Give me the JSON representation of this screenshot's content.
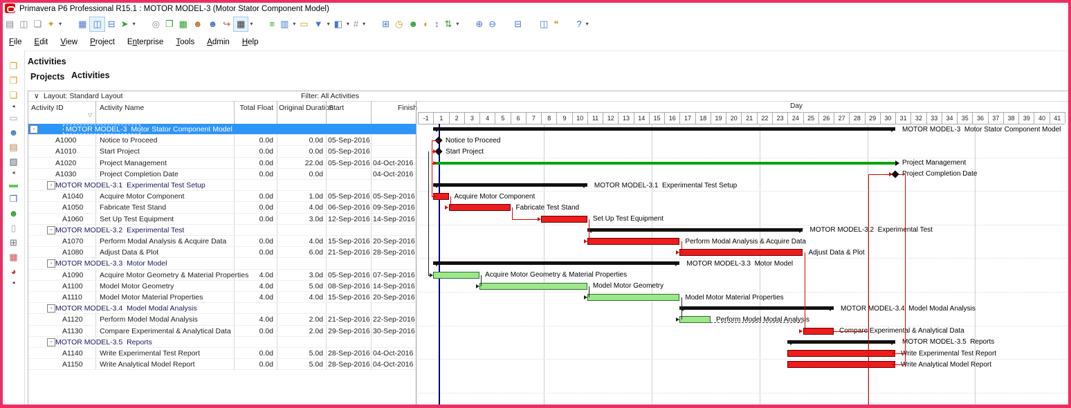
{
  "window": {
    "title": "Primavera P6 Professional R15.1 : MOTOR MODEL-3 (Motor Stator Component Model)"
  },
  "menu": {
    "items": [
      {
        "label": "File",
        "u": 0
      },
      {
        "label": "Edit",
        "u": 0
      },
      {
        "label": "View",
        "u": 0
      },
      {
        "label": "Project",
        "u": 0
      },
      {
        "label": "Enterprise",
        "u": 1
      },
      {
        "label": "Tools",
        "u": 0
      },
      {
        "label": "Admin",
        "u": 0
      },
      {
        "label": "Help",
        "u": 0
      }
    ]
  },
  "toolbar": {
    "icons": [
      {
        "name": "print-icon",
        "g": "▤",
        "c": "#8a8a8a"
      },
      {
        "name": "print-preview-icon",
        "g": "◫",
        "c": "#8a8a8a"
      },
      {
        "name": "page-setup-icon",
        "g": "❏",
        "c": "#8a8a8a"
      },
      {
        "name": "publish-icon",
        "g": "✦",
        "c": "#c9a227"
      },
      {
        "name": "caret",
        "g": "▾",
        "c": "#444",
        "caret": true
      },
      {
        "name": "gap",
        "gap": true
      },
      {
        "name": "table-view-icon",
        "g": "▦",
        "c": "#4a78c9"
      },
      {
        "name": "gantt-view-icon",
        "g": "◫",
        "c": "#4a78c9",
        "hl": true
      },
      {
        "name": "trace-logic-icon",
        "g": "⊟",
        "c": "#4a78c9"
      },
      {
        "name": "pointer-icon",
        "g": "➤",
        "c": "#2f9e2f"
      },
      {
        "name": "caret",
        "g": "▾",
        "c": "#444",
        "caret": true
      },
      {
        "name": "gap",
        "gap": true
      },
      {
        "name": "search-icon",
        "g": "◎",
        "c": "#8a8a8a"
      },
      {
        "name": "add-project-icon",
        "g": "❒",
        "c": "#2f9e2f"
      },
      {
        "name": "add-wbs-icon",
        "g": "▦",
        "c": "#2f9e2f"
      },
      {
        "name": "resource-blue-icon",
        "g": "☻",
        "c": "#b8793a"
      },
      {
        "name": "resource-role-icon",
        "g": "☻",
        "c": "#4a78c9"
      },
      {
        "name": "relationship-icon",
        "g": "↪",
        "c": "#c94a4a"
      },
      {
        "name": "schedule-icon",
        "g": "▦",
        "c": "#333",
        "hl": true
      },
      {
        "name": "caret",
        "g": "▾",
        "c": "#444",
        "caret": true
      },
      {
        "name": "gap",
        "gap": true
      },
      {
        "name": "bars-icon",
        "g": "≡",
        "c": "#2f9e2f"
      },
      {
        "name": "columns-icon",
        "g": "▥",
        "c": "#4a78c9"
      },
      {
        "name": "caret",
        "g": "▾",
        "c": "#444",
        "caret": true
      },
      {
        "name": "bottom-layout-icon",
        "g": "▭",
        "c": "#c9a227"
      },
      {
        "name": "filter-icon",
        "g": "▼",
        "c": "#4a78c9"
      },
      {
        "name": "caret",
        "g": "▾",
        "c": "#444",
        "caret": true
      },
      {
        "name": "group-sort-icon",
        "g": "◧",
        "c": "#4a78c9"
      },
      {
        "name": "caret",
        "g": "▾",
        "c": "#444",
        "caret": true
      },
      {
        "name": "font-icon",
        "g": "#",
        "c": "#999"
      },
      {
        "name": "caret",
        "g": "▾",
        "c": "#444",
        "caret": true
      },
      {
        "name": "gap",
        "gap": true
      },
      {
        "name": "grid-icon",
        "g": "⊞",
        "c": "#4a78c9"
      },
      {
        "name": "clock-icon",
        "g": "◷",
        "c": "#c9a227"
      },
      {
        "name": "assign-resource-icon",
        "g": "☻",
        "c": "#2f9e2f"
      },
      {
        "name": "spotlight-icon",
        "g": "◐",
        "c": "#c9a227"
      },
      {
        "name": "progress-icon",
        "g": "↕",
        "c": "#7a4ac9"
      },
      {
        "name": "update-icon",
        "g": "⇅",
        "c": "#2f9e2f"
      },
      {
        "name": "caret",
        "g": "▾",
        "c": "#444",
        "caret": true
      },
      {
        "name": "gap",
        "gap": true
      },
      {
        "name": "zoom-in-icon",
        "g": "⊕",
        "c": "#4a78c9"
      },
      {
        "name": "zoom-out-icon",
        "g": "⊖",
        "c": "#4a78c9"
      },
      {
        "name": "gap",
        "gap": true
      },
      {
        "name": "hsplit-icon",
        "g": "⊟",
        "c": "#4a78c9"
      },
      {
        "name": "gap",
        "gap": true
      },
      {
        "name": "vsplit-icon",
        "g": "◫",
        "c": "#4a78c9"
      },
      {
        "name": "comment-icon",
        "g": "❝",
        "c": "#c9a227"
      },
      {
        "name": "gap",
        "gap": true
      },
      {
        "name": "help-icon",
        "g": "?",
        "c": "#1a6fb5"
      },
      {
        "name": "caret",
        "g": "▾",
        "c": "#444",
        "caret": true
      }
    ]
  },
  "rail": {
    "icons": [
      {
        "name": "new-project-icon",
        "g": "❐",
        "c": "#c9a227"
      },
      {
        "name": "open-project-icon",
        "g": "❐",
        "c": "#e8912d"
      },
      {
        "name": "import-icon",
        "g": "❏",
        "c": "#c9a227"
      },
      {
        "name": "collapse-icon",
        "g": "◂",
        "c": "#444",
        "small": true
      },
      {
        "name": "wbs-icon",
        "g": "▭",
        "c": "#9aa8bb"
      },
      {
        "name": "activities-icon",
        "g": "☻",
        "c": "#4a78c9"
      },
      {
        "name": "notebook-icon",
        "g": "▤",
        "c": "#b8824a"
      },
      {
        "name": "reports-icon",
        "g": "▧",
        "c": "#55617a"
      },
      {
        "name": "collapse-icon",
        "g": "◂",
        "c": "#444",
        "small": true
      },
      {
        "name": "activity-bar-icon",
        "g": "▬",
        "c": "#55cc55"
      },
      {
        "name": "blocks-icon",
        "g": "❒",
        "c": "#4466cc"
      },
      {
        "name": "resources-icon",
        "g": "☻",
        "c": "#2f9e2f"
      },
      {
        "name": "document-icon",
        "g": "▯",
        "c": "#9aa0aa"
      },
      {
        "name": "calculator-icon",
        "g": "⊞",
        "c": "#666e7a"
      },
      {
        "name": "roles-icon",
        "g": "▦",
        "c": "#cc5555"
      },
      {
        "name": "risk-icon",
        "g": "◕",
        "c": "#cc3333"
      },
      {
        "name": "collapse-icon",
        "g": "◂",
        "c": "#444",
        "small": true
      }
    ]
  },
  "page": {
    "heading": "Activities",
    "tabs": [
      "Projects",
      "Activities"
    ]
  },
  "layout_bar": {
    "chevron": "∨",
    "layout": "Layout: Standard Layout",
    "filter": "Filter: All Activities"
  },
  "table": {
    "columns": [
      "Activity ID",
      "Activity Name",
      "Total Float",
      "Original Duration",
      "Start",
      "Finish"
    ]
  },
  "timeline": {
    "unit": "Day",
    "ticks": [
      "-1",
      "1",
      "2",
      "3",
      "4",
      "5",
      "6",
      "7",
      "8",
      "9",
      "10",
      "11",
      "12",
      "13",
      "14",
      "15",
      "16",
      "17",
      "18",
      "19",
      "20",
      "21",
      "22",
      "23",
      "24",
      "25",
      "26",
      "27",
      "28",
      "29",
      "30",
      "31",
      "32",
      "33",
      "34",
      "35",
      "36",
      "37",
      "38",
      "39",
      "40",
      "41"
    ]
  },
  "colors": {
    "frame": "#ee2e63",
    "selection": "#2e95f8",
    "critical": "#ee1c1c",
    "critical_border": "#6a0000",
    "noncritical_fill": "#9ce98b",
    "noncritical_border": "#2f6b2f",
    "summary": "#111111",
    "level_of_effort_green": "#00a400",
    "data_date": "#000080"
  },
  "rows": [
    {
      "kind": "root",
      "selected": true,
      "name": "MOTOR MODEL-3  Motor Stator Component Model",
      "tf": "",
      "od": "",
      "start": "",
      "finish": "",
      "bar": {
        "type": "summary",
        "d1": 1,
        "d2": 30,
        "label": "MOTOR MODEL-3  Motor Stator Component Model"
      }
    },
    {
      "kind": "activity",
      "indent": 1,
      "id": "A1000",
      "name": "Notice to Proceed",
      "tf": "0.0d",
      "od": "0.0d",
      "start": "05-Sep-2016",
      "finish": "",
      "bar": {
        "type": "milestone",
        "at": 1.35,
        "label": "Notice to Proceed"
      }
    },
    {
      "kind": "activity",
      "indent": 1,
      "id": "A1010",
      "name": "Start Project",
      "tf": "0.0d",
      "od": "0.0d",
      "start": "05-Sep-2016",
      "finish": "",
      "bar": {
        "type": "milestone",
        "at": 1.35,
        "label": "Start Project"
      }
    },
    {
      "kind": "activity",
      "indent": 1,
      "id": "A1020",
      "name": "Project Management",
      "tf": "0.0d",
      "od": "22.0d",
      "start": "05-Sep-2016",
      "finish": "04-Oct-2016",
      "bar": {
        "type": "line-green",
        "d1": 1,
        "d2": 30,
        "label": "Project Management"
      }
    },
    {
      "kind": "activity",
      "indent": 1,
      "id": "A1030",
      "name": "Project Completion Date",
      "tf": "0.0d",
      "od": "0.0d",
      "start": "",
      "finish": "04-Oct-2016",
      "bar": {
        "type": "milestone",
        "at": 31,
        "label": "Project Completion Date"
      }
    },
    {
      "kind": "group",
      "name": "MOTOR MODEL-3.1  Experimental Test Setup",
      "tf": "",
      "od": "",
      "start": "",
      "finish": "",
      "bar": {
        "type": "summary",
        "d1": 1,
        "d2": 10,
        "label": "MOTOR MODEL-3.1  Experimental Test Setup"
      }
    },
    {
      "kind": "activity",
      "indent": 2,
      "id": "A1040",
      "name": "Acquire Motor Component",
      "tf": "0.0d",
      "od": "1.0d",
      "start": "05-Sep-2016",
      "finish": "05-Sep-2016",
      "bar": {
        "type": "bar-critical",
        "d1": 1,
        "d2": 1,
        "label": "Acquire Motor Component"
      }
    },
    {
      "kind": "activity",
      "indent": 2,
      "id": "A1050",
      "name": "Fabricate Test Stand",
      "tf": "0.0d",
      "od": "4.0d",
      "start": "06-Sep-2016",
      "finish": "09-Sep-2016",
      "bar": {
        "type": "bar-critical",
        "d1": 2,
        "d2": 5,
        "label": "Fabricate Test Stand"
      }
    },
    {
      "kind": "activity",
      "indent": 2,
      "id": "A1060",
      "name": "Set Up Test Equipment",
      "tf": "0.0d",
      "od": "3.0d",
      "start": "12-Sep-2016",
      "finish": "14-Sep-2016",
      "bar": {
        "type": "bar-critical",
        "d1": 8,
        "d2": 10,
        "label": "Set Up Test Equipment"
      }
    },
    {
      "kind": "group",
      "name": "MOTOR MODEL-3.2  Experimental Test",
      "tf": "",
      "od": "",
      "start": "",
      "finish": "",
      "bar": {
        "type": "summary",
        "d1": 11,
        "d2": 24,
        "label": "MOTOR MODEL-3.2  Experimental Test"
      }
    },
    {
      "kind": "activity",
      "indent": 2,
      "id": "A1070",
      "name": "Perform Modal Analysis & Acquire Data",
      "tf": "0.0d",
      "od": "4.0d",
      "start": "15-Sep-2016",
      "finish": "20-Sep-2016",
      "bar": {
        "type": "bar-critical",
        "d1": 11,
        "d2": 16,
        "label": "Perform Modal Analysis & Acquire Data"
      }
    },
    {
      "kind": "activity",
      "indent": 2,
      "id": "A1080",
      "name": "Adjust Data & Plot",
      "tf": "0.0d",
      "od": "6.0d",
      "start": "21-Sep-2016",
      "finish": "28-Sep-2016",
      "bar": {
        "type": "bar-critical",
        "d1": 17,
        "d2": 24,
        "label": "Adjust Data & Plot"
      }
    },
    {
      "kind": "group",
      "name": "MOTOR MODEL-3.3  Motor Model",
      "tf": "",
      "od": "",
      "start": "",
      "finish": "",
      "bar": {
        "type": "summary",
        "d1": 1,
        "d2": 16,
        "label": "MOTOR MODEL-3.3  Motor Model"
      }
    },
    {
      "kind": "activity",
      "indent": 2,
      "id": "A1090",
      "name": "Acquire Motor Geometry & Material Properties",
      "tf": "4.0d",
      "od": "3.0d",
      "start": "05-Sep-2016",
      "finish": "07-Sep-2016",
      "bar": {
        "type": "bar-green",
        "d1": 1,
        "d2": 3,
        "label": "Acquire Motor Geometry & Material Properties"
      }
    },
    {
      "kind": "activity",
      "indent": 2,
      "id": "A1100",
      "name": "Model Motor Geometry",
      "tf": "4.0d",
      "od": "5.0d",
      "start": "08-Sep-2016",
      "finish": "14-Sep-2016",
      "bar": {
        "type": "bar-green",
        "d1": 4,
        "d2": 10,
        "label": "Model Motor Geometry"
      }
    },
    {
      "kind": "activity",
      "indent": 2,
      "id": "A1110",
      "name": "Model Motor Material Properties",
      "tf": "4.0d",
      "od": "4.0d",
      "start": "15-Sep-2016",
      "finish": "20-Sep-2016",
      "bar": {
        "type": "bar-green",
        "d1": 11,
        "d2": 16,
        "label": "Model Motor Material Properties"
      }
    },
    {
      "kind": "group",
      "name": "MOTOR MODEL-3.4  Model Modal Analysis",
      "tf": "",
      "od": "",
      "start": "",
      "finish": "",
      "bar": {
        "type": "summary",
        "d1": 17,
        "d2": 26,
        "label": "MOTOR MODEL-3.4  Model Modal Analysis"
      }
    },
    {
      "kind": "activity",
      "indent": 2,
      "id": "A1120",
      "name": "Perform Model Modal Analysis",
      "tf": "4.0d",
      "od": "2.0d",
      "start": "21-Sep-2016",
      "finish": "22-Sep-2016",
      "bar": {
        "type": "bar-green",
        "d1": 17,
        "d2": 18,
        "float_to": 24,
        "label": "Perform Model Modal Analysis"
      }
    },
    {
      "kind": "activity",
      "indent": 2,
      "id": "A1130",
      "name": "Compare Experimental & Analytical Data",
      "tf": "0.0d",
      "od": "2.0d",
      "start": "29-Sep-2016",
      "finish": "30-Sep-2016",
      "bar": {
        "type": "bar-critical",
        "d1": 25,
        "d2": 26,
        "label": "Compare Experimental & Analytical Data"
      }
    },
    {
      "kind": "group",
      "name": "MOTOR MODEL-3.5  Reports",
      "tf": "",
      "od": "",
      "start": "",
      "finish": "",
      "bar": {
        "type": "summary",
        "d1": 24,
        "d2": 30,
        "label": "MOTOR MODEL-3.5  Reports"
      }
    },
    {
      "kind": "activity",
      "indent": 2,
      "id": "A1140",
      "name": "Write Experimental Test Report",
      "tf": "0.0d",
      "od": "5.0d",
      "start": "28-Sep-2016",
      "finish": "04-Oct-2016",
      "bar": {
        "type": "bar-critical",
        "d1": 24,
        "d2": 30,
        "label": "Write Experimental Test Report"
      }
    },
    {
      "kind": "activity",
      "indent": 2,
      "id": "A1150",
      "name": "Write Analytical Model Report",
      "tf": "0.0d",
      "od": "5.0d",
      "start": "28-Sep-2016",
      "finish": "04-Oct-2016",
      "bar": {
        "type": "bar-critical",
        "d1": 24,
        "d2": 30,
        "label": "Write Analytical Model Report"
      }
    }
  ]
}
